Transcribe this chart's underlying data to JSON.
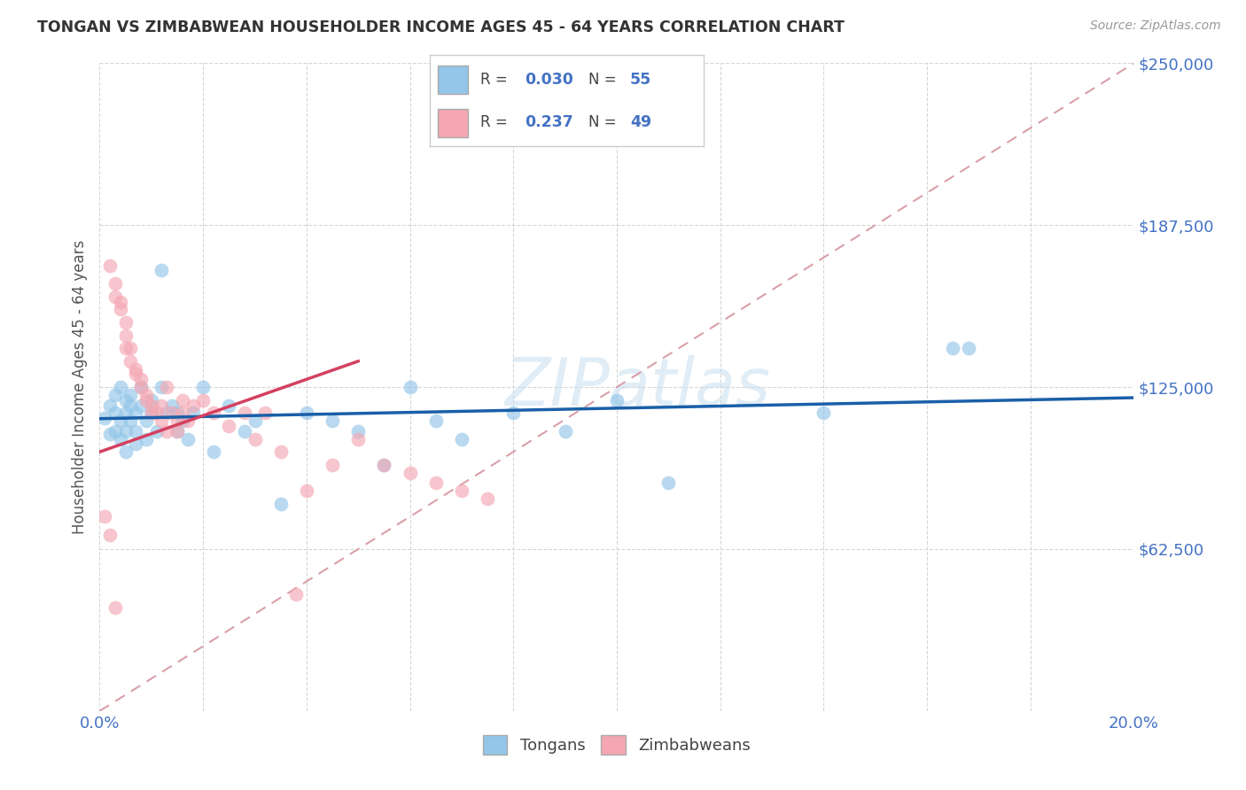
{
  "title": "TONGAN VS ZIMBABWEAN HOUSEHOLDER INCOME AGES 45 - 64 YEARS CORRELATION CHART",
  "source": "Source: ZipAtlas.com",
  "ylabel": "Householder Income Ages 45 - 64 years",
  "xlim": [
    0.0,
    0.2
  ],
  "ylim": [
    0,
    250000
  ],
  "yticks": [
    0,
    62500,
    125000,
    187500,
    250000
  ],
  "ytick_labels": [
    "",
    "$62,500",
    "$125,000",
    "$187,500",
    "$250,000"
  ],
  "xticks": [
    0.0,
    0.02,
    0.04,
    0.06,
    0.08,
    0.1,
    0.12,
    0.14,
    0.16,
    0.18,
    0.2
  ],
  "legend_labels": [
    "Tongans",
    "Zimbabweans"
  ],
  "tongan_R": "0.030",
  "tongan_N": "55",
  "zimbabwean_R": "0.237",
  "zimbabwean_N": "49",
  "blue_scatter": "#93c6e8",
  "pink_scatter": "#f4a7b2",
  "blue_line_color": "#1a5fa8",
  "pink_line_color": "#d44060",
  "diagonal_color": "#d9a0a8",
  "grid_color": "#cccccc",
  "axis_label_color": "#4472c4",
  "text_color": "#555555",
  "tongan_x": [
    0.001,
    0.002,
    0.002,
    0.003,
    0.003,
    0.003,
    0.004,
    0.004,
    0.004,
    0.005,
    0.005,
    0.005,
    0.005,
    0.006,
    0.006,
    0.006,
    0.007,
    0.007,
    0.007,
    0.008,
    0.008,
    0.009,
    0.009,
    0.01,
    0.01,
    0.011,
    0.012,
    0.012,
    0.013,
    0.014,
    0.015,
    0.015,
    0.016,
    0.017,
    0.018,
    0.02,
    0.022,
    0.025,
    0.028,
    0.03,
    0.035,
    0.04,
    0.045,
    0.05,
    0.055,
    0.06,
    0.065,
    0.07,
    0.08,
    0.09,
    0.1,
    0.11,
    0.14,
    0.165,
    0.168
  ],
  "tongan_y": [
    113000,
    107000,
    118000,
    122000,
    108000,
    115000,
    125000,
    112000,
    105000,
    120000,
    115000,
    108000,
    100000,
    122000,
    118000,
    112000,
    115000,
    108000,
    103000,
    125000,
    118000,
    112000,
    105000,
    120000,
    115000,
    108000,
    170000,
    125000,
    115000,
    118000,
    108000,
    115000,
    112000,
    105000,
    115000,
    125000,
    100000,
    118000,
    108000,
    112000,
    80000,
    115000,
    112000,
    108000,
    95000,
    125000,
    112000,
    105000,
    115000,
    108000,
    120000,
    88000,
    115000,
    140000,
    140000
  ],
  "zimbabwean_x": [
    0.001,
    0.002,
    0.002,
    0.003,
    0.003,
    0.004,
    0.004,
    0.005,
    0.005,
    0.005,
    0.006,
    0.006,
    0.007,
    0.007,
    0.008,
    0.008,
    0.009,
    0.009,
    0.01,
    0.01,
    0.011,
    0.012,
    0.012,
    0.013,
    0.013,
    0.014,
    0.015,
    0.015,
    0.016,
    0.016,
    0.017,
    0.018,
    0.02,
    0.022,
    0.025,
    0.028,
    0.03,
    0.032,
    0.035,
    0.04,
    0.045,
    0.05,
    0.055,
    0.06,
    0.065,
    0.07,
    0.075,
    0.038,
    0.003
  ],
  "zimbabwean_y": [
    75000,
    172000,
    68000,
    165000,
    160000,
    158000,
    155000,
    150000,
    145000,
    140000,
    140000,
    135000,
    132000,
    130000,
    128000,
    125000,
    122000,
    120000,
    118000,
    115000,
    115000,
    118000,
    112000,
    125000,
    108000,
    115000,
    112000,
    108000,
    120000,
    115000,
    112000,
    118000,
    120000,
    115000,
    110000,
    115000,
    105000,
    115000,
    100000,
    85000,
    95000,
    105000,
    95000,
    92000,
    88000,
    85000,
    82000,
    45000,
    40000
  ]
}
